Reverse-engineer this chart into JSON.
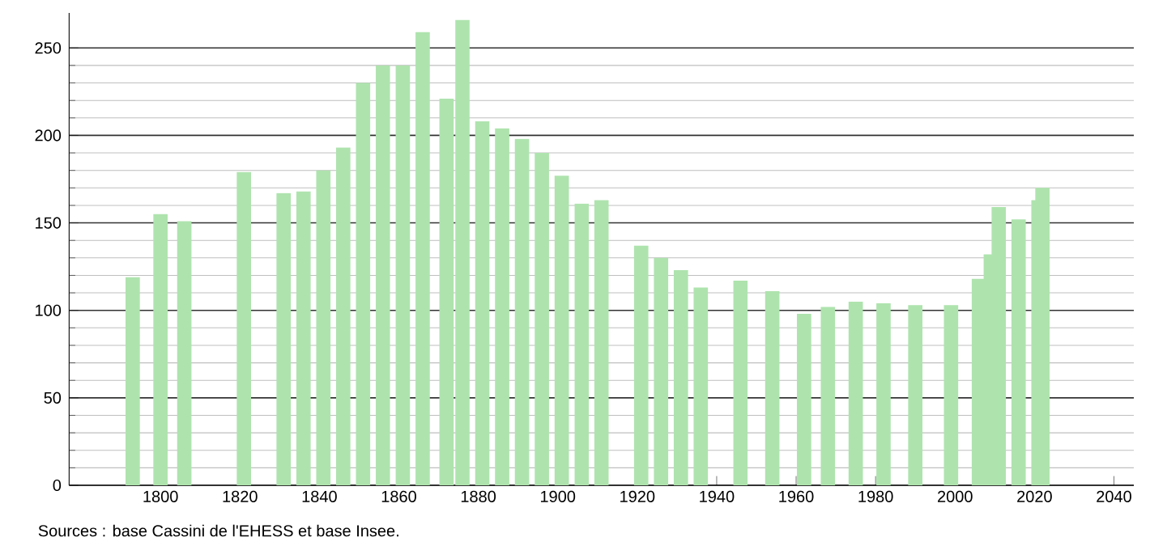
{
  "chart_data": {
    "type": "bar",
    "x": [
      1793,
      1800,
      1806,
      1821,
      1831,
      1836,
      1841,
      1846,
      1851,
      1856,
      1861,
      1866,
      1872,
      1876,
      1881,
      1886,
      1891,
      1896,
      1901,
      1906,
      1911,
      1921,
      1926,
      1931,
      1936,
      1946,
      1954,
      1962,
      1968,
      1975,
      1982,
      1990,
      1999,
      2006,
      2009,
      2011,
      2016,
      2021,
      2022
    ],
    "values": [
      119,
      155,
      151,
      179,
      167,
      168,
      180,
      193,
      230,
      240,
      240,
      259,
      221,
      266,
      208,
      204,
      198,
      190,
      177,
      161,
      163,
      137,
      130,
      123,
      113,
      117,
      111,
      98,
      102,
      105,
      104,
      103,
      103,
      118,
      132,
      159,
      152,
      163,
      170
    ],
    "color": "#aee3ae",
    "xlim": [
      1777,
      2045
    ],
    "xticks": [
      1800,
      1820,
      1840,
      1860,
      1880,
      1900,
      1920,
      1940,
      1960,
      1980,
      2000,
      2020,
      2040
    ],
    "ylim": [
      0,
      270
    ],
    "yticks": [
      0,
      50,
      100,
      150,
      200,
      250
    ],
    "grid": "y",
    "annotations": [
      "Sources : base Cassini de l'EHESS et base Insee."
    ]
  }
}
